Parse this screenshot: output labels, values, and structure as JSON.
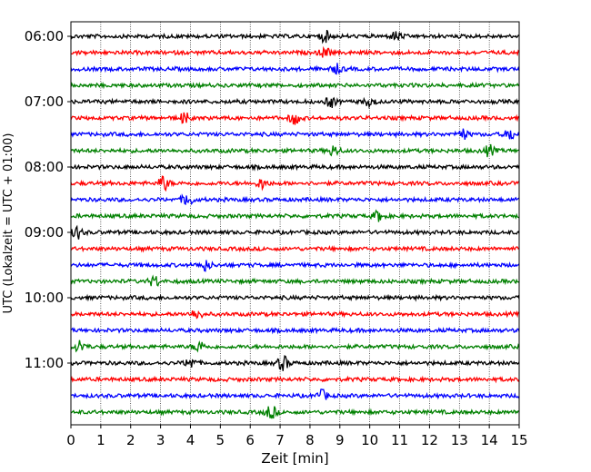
{
  "chart_data": {
    "type": "line",
    "title": "",
    "xlabel": "Zeit  [min]",
    "ylabel": "UTC (Lokalzeit = UTC + 01:00)",
    "xlim": [
      0,
      15
    ],
    "x_ticks": [
      0,
      1,
      2,
      3,
      4,
      5,
      6,
      7,
      8,
      9,
      10,
      11,
      12,
      13,
      14,
      15
    ],
    "x_tick_labels": [
      "0",
      "1",
      "2",
      "3",
      "4",
      "5",
      "6",
      "7",
      "8",
      "9",
      "10",
      "11",
      "12",
      "13",
      "14",
      "15"
    ],
    "y_ticks": [
      {
        "label": "06:00",
        "trace_index": 0
      },
      {
        "label": "07:00",
        "trace_index": 4
      },
      {
        "label": "08:00",
        "trace_index": 8
      },
      {
        "label": "09:00",
        "trace_index": 12
      },
      {
        "label": "10:00",
        "trace_index": 16
      },
      {
        "label": "11:00",
        "trace_index": 20
      }
    ],
    "grid": "vertical dotted",
    "colors": [
      "#000000",
      "#ff0000",
      "#0000ff",
      "#008000"
    ],
    "traces": [
      {
        "start": "06:00",
        "color": "#000000"
      },
      {
        "start": "06:15",
        "color": "#ff0000"
      },
      {
        "start": "06:30",
        "color": "#0000ff"
      },
      {
        "start": "06:45",
        "color": "#008000"
      },
      {
        "start": "07:00",
        "color": "#000000"
      },
      {
        "start": "07:15",
        "color": "#ff0000"
      },
      {
        "start": "07:30",
        "color": "#0000ff"
      },
      {
        "start": "07:45",
        "color": "#008000"
      },
      {
        "start": "08:00",
        "color": "#000000"
      },
      {
        "start": "08:15",
        "color": "#ff0000"
      },
      {
        "start": "08:30",
        "color": "#0000ff"
      },
      {
        "start": "08:45",
        "color": "#008000"
      },
      {
        "start": "09:00",
        "color": "#000000"
      },
      {
        "start": "09:15",
        "color": "#ff0000"
      },
      {
        "start": "09:30",
        "color": "#0000ff"
      },
      {
        "start": "09:45",
        "color": "#008000"
      },
      {
        "start": "10:00",
        "color": "#000000"
      },
      {
        "start": "10:15",
        "color": "#ff0000"
      },
      {
        "start": "10:30",
        "color": "#0000ff"
      },
      {
        "start": "10:45",
        "color": "#008000"
      },
      {
        "start": "11:00",
        "color": "#000000"
      },
      {
        "start": "11:15",
        "color": "#ff0000"
      },
      {
        "start": "11:30",
        "color": "#0000ff"
      },
      {
        "start": "11:45",
        "color": "#008000"
      }
    ],
    "events": [
      {
        "trace_index": 0,
        "minute": 8.5,
        "amp": 1.0
      },
      {
        "trace_index": 0,
        "minute": 10.9,
        "amp": 0.9
      },
      {
        "trace_index": 1,
        "minute": 8.5,
        "amp": 0.9
      },
      {
        "trace_index": 2,
        "minute": 8.9,
        "amp": 0.8
      },
      {
        "trace_index": 4,
        "minute": 8.7,
        "amp": 1.0
      },
      {
        "trace_index": 4,
        "minute": 10.0,
        "amp": 0.8
      },
      {
        "trace_index": 5,
        "minute": 3.8,
        "amp": 1.0
      },
      {
        "trace_index": 5,
        "minute": 7.5,
        "amp": 1.2
      },
      {
        "trace_index": 6,
        "minute": 13.1,
        "amp": 1.0
      },
      {
        "trace_index": 6,
        "minute": 14.7,
        "amp": 1.0
      },
      {
        "trace_index": 7,
        "minute": 8.8,
        "amp": 1.0
      },
      {
        "trace_index": 7,
        "minute": 14.0,
        "amp": 1.0
      },
      {
        "trace_index": 9,
        "minute": 6.4,
        "amp": 1.0
      },
      {
        "trace_index": 9,
        "minute": 3.1,
        "amp": 1.4
      },
      {
        "trace_index": 10,
        "minute": 3.9,
        "amp": 1.2
      },
      {
        "trace_index": 11,
        "minute": 10.3,
        "amp": 1.0
      },
      {
        "trace_index": 12,
        "minute": 0.2,
        "amp": 1.2
      },
      {
        "trace_index": 14,
        "minute": 4.5,
        "amp": 1.0
      },
      {
        "trace_index": 15,
        "minute": 2.8,
        "amp": 1.0
      },
      {
        "trace_index": 17,
        "minute": 4.2,
        "amp": 1.0
      },
      {
        "trace_index": 19,
        "minute": 0.3,
        "amp": 1.2
      },
      {
        "trace_index": 19,
        "minute": 4.3,
        "amp": 1.0
      },
      {
        "trace_index": 20,
        "minute": 4.0,
        "amp": 1.0
      },
      {
        "trace_index": 20,
        "minute": 7.1,
        "amp": 1.4
      },
      {
        "trace_index": 22,
        "minute": 8.4,
        "amp": 1.0
      },
      {
        "trace_index": 23,
        "minute": 6.7,
        "amp": 1.3
      }
    ]
  }
}
